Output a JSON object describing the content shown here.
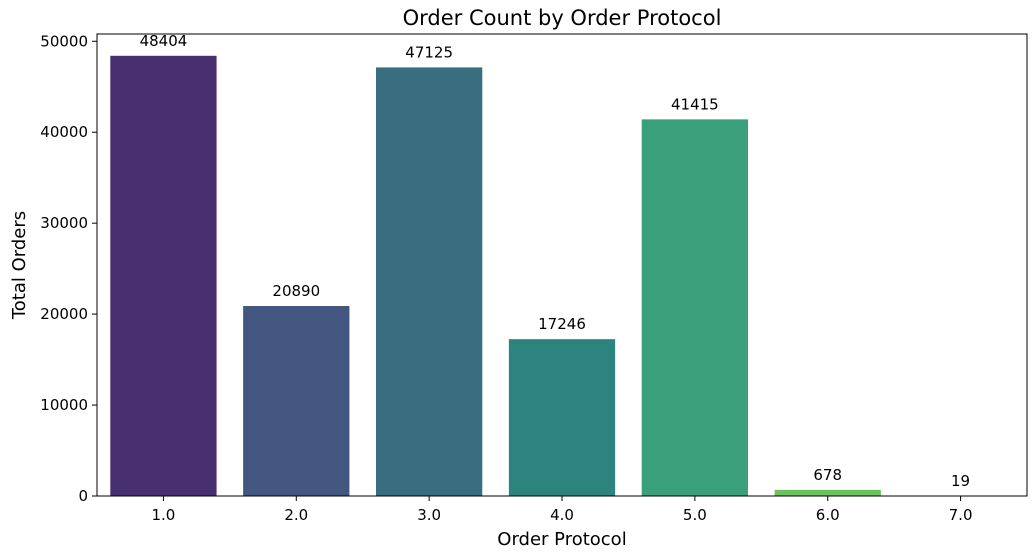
{
  "chart_data": {
    "type": "bar",
    "title": "Order Count by Order Protocol",
    "xlabel": "Order Protocol",
    "ylabel": "Total Orders",
    "categories": [
      "1.0",
      "2.0",
      "3.0",
      "4.0",
      "5.0",
      "6.0",
      "7.0"
    ],
    "values": [
      48404,
      20890,
      47125,
      17246,
      41415,
      678,
      19
    ],
    "data_labels": [
      "48404",
      "20890",
      "47125",
      "17246",
      "41415",
      "678",
      "19"
    ],
    "ylim": [
      0,
      50800
    ],
    "yticks": [
      0,
      10000,
      20000,
      30000,
      40000,
      50000
    ],
    "ytick_labels": [
      "0",
      "10000",
      "20000",
      "30000",
      "40000",
      "50000"
    ],
    "colors": [
      "#482f6f",
      "#43567f",
      "#396d80",
      "#2d847e",
      "#3aa07b",
      "#6cc25c",
      "#bde043"
    ],
    "grid": false,
    "legend": "none"
  }
}
